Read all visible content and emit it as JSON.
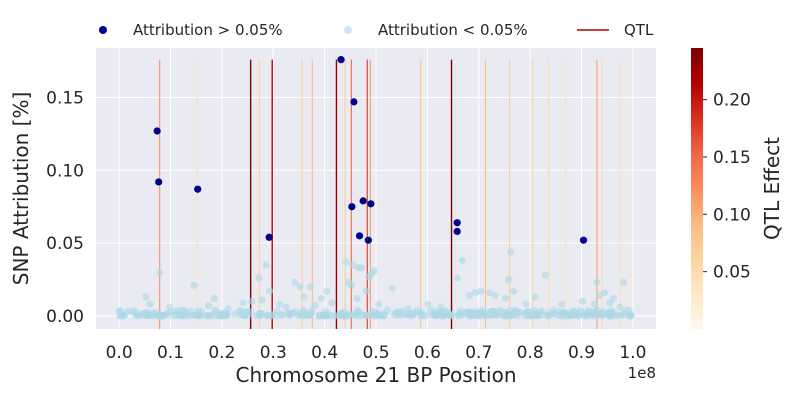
{
  "chart_data": {
    "type": "scatter",
    "xlabel": "Chromosome 21 BP Position",
    "ylabel": "SNP Attribution [%]",
    "x_offset_label": "1e8",
    "xlim": [
      -0.045,
      1.045
    ],
    "ylim": [
      -0.009,
      0.184
    ],
    "x_ticks": [
      0.0,
      0.1,
      0.2,
      0.3,
      0.4,
      0.5,
      0.6,
      0.7,
      0.8,
      0.9,
      1.0
    ],
    "x_tick_labels": [
      "0.0",
      "0.1",
      "0.2",
      "0.3",
      "0.4",
      "0.5",
      "0.6",
      "0.7",
      "0.8",
      "0.9",
      "1.0"
    ],
    "y_ticks": [
      0.0,
      0.05,
      0.1,
      0.15
    ],
    "y_tick_labels": [
      "0.00",
      "0.05",
      "0.10",
      "0.15"
    ],
    "grid": true,
    "legend": {
      "placement": "top",
      "entries": [
        {
          "label": "Attribution > 0.05%",
          "kind": "marker",
          "color": "#00008b"
        },
        {
          "label": "Attribution < 0.05%",
          "kind": "marker",
          "color": "#add8e6"
        },
        {
          "label": "QTL",
          "kind": "line",
          "color": "#b30000"
        }
      ]
    },
    "colorbar": {
      "label": "QTL Effect",
      "range": [
        0.0,
        0.245
      ],
      "ticks": [
        0.05,
        0.1,
        0.15,
        0.2
      ],
      "tick_labels": [
        "0.05",
        "0.10",
        "0.15",
        "0.20"
      ],
      "colormap": "OrRd",
      "colormap_stops": [
        "#fff7ec",
        "#fee8c8",
        "#fdd49e",
        "#fdbb84",
        "#fc8d59",
        "#ef6548",
        "#d7301f",
        "#b30000",
        "#7f0000"
      ]
    },
    "series": [
      {
        "name": "Attribution > 0.05%",
        "color": "#00008b",
        "points": [
          {
            "x": 0.074,
            "y": 0.127
          },
          {
            "x": 0.077,
            "y": 0.092
          },
          {
            "x": 0.153,
            "y": 0.087
          },
          {
            "x": 0.292,
            "y": 0.054
          },
          {
            "x": 0.432,
            "y": 0.176
          },
          {
            "x": 0.453,
            "y": 0.075
          },
          {
            "x": 0.457,
            "y": 0.147
          },
          {
            "x": 0.468,
            "y": 0.055
          },
          {
            "x": 0.475,
            "y": 0.079
          },
          {
            "x": 0.485,
            "y": 0.052
          },
          {
            "x": 0.49,
            "y": 0.077
          },
          {
            "x": 0.658,
            "y": 0.064
          },
          {
            "x": 0.658,
            "y": 0.058
          },
          {
            "x": 0.904,
            "y": 0.052
          }
        ]
      },
      {
        "name": "Attribution < 0.05%",
        "color": "#add8e6",
        "points": [
          {
            "x": 0.052,
            "y": 0.013
          },
          {
            "x": 0.06,
            "y": 0.008
          },
          {
            "x": 0.079,
            "y": 0.03
          },
          {
            "x": 0.098,
            "y": 0.006
          },
          {
            "x": 0.121,
            "y": 0.004
          },
          {
            "x": 0.146,
            "y": 0.021
          },
          {
            "x": 0.174,
            "y": 0.007
          },
          {
            "x": 0.185,
            "y": 0.012
          },
          {
            "x": 0.212,
            "y": 0.005
          },
          {
            "x": 0.241,
            "y": 0.009
          },
          {
            "x": 0.258,
            "y": 0.01
          },
          {
            "x": 0.272,
            "y": 0.026
          },
          {
            "x": 0.278,
            "y": 0.011
          },
          {
            "x": 0.286,
            "y": 0.035
          },
          {
            "x": 0.293,
            "y": 0.017
          },
          {
            "x": 0.312,
            "y": 0.008
          },
          {
            "x": 0.325,
            "y": 0.006
          },
          {
            "x": 0.342,
            "y": 0.023
          },
          {
            "x": 0.352,
            "y": 0.02
          },
          {
            "x": 0.36,
            "y": 0.013
          },
          {
            "x": 0.372,
            "y": 0.02
          },
          {
            "x": 0.381,
            "y": 0.007
          },
          {
            "x": 0.394,
            "y": 0.012
          },
          {
            "x": 0.404,
            "y": 0.017
          },
          {
            "x": 0.414,
            "y": 0.009
          },
          {
            "x": 0.442,
            "y": 0.037
          },
          {
            "x": 0.447,
            "y": 0.023
          },
          {
            "x": 0.452,
            "y": 0.021
          },
          {
            "x": 0.455,
            "y": 0.035
          },
          {
            "x": 0.463,
            "y": 0.012
          },
          {
            "x": 0.466,
            "y": 0.033
          },
          {
            "x": 0.472,
            "y": 0.033
          },
          {
            "x": 0.481,
            "y": 0.017
          },
          {
            "x": 0.486,
            "y": 0.027
          },
          {
            "x": 0.492,
            "y": 0.029
          },
          {
            "x": 0.497,
            "y": 0.031
          },
          {
            "x": 0.505,
            "y": 0.008
          },
          {
            "x": 0.522,
            "y": 0.004
          },
          {
            "x": 0.532,
            "y": 0.019
          },
          {
            "x": 0.562,
            "y": 0.005
          },
          {
            "x": 0.601,
            "y": 0.008
          },
          {
            "x": 0.626,
            "y": 0.006
          },
          {
            "x": 0.658,
            "y": 0.026
          },
          {
            "x": 0.668,
            "y": 0.038
          },
          {
            "x": 0.682,
            "y": 0.014
          },
          {
            "x": 0.693,
            "y": 0.016
          },
          {
            "x": 0.704,
            "y": 0.017
          },
          {
            "x": 0.721,
            "y": 0.016
          },
          {
            "x": 0.732,
            "y": 0.014
          },
          {
            "x": 0.752,
            "y": 0.012
          },
          {
            "x": 0.758,
            "y": 0.025
          },
          {
            "x": 0.762,
            "y": 0.044
          },
          {
            "x": 0.768,
            "y": 0.017
          },
          {
            "x": 0.792,
            "y": 0.008
          },
          {
            "x": 0.81,
            "y": 0.013
          },
          {
            "x": 0.83,
            "y": 0.028
          },
          {
            "x": 0.862,
            "y": 0.008
          },
          {
            "x": 0.902,
            "y": 0.01
          },
          {
            "x": 0.925,
            "y": 0.008
          },
          {
            "x": 0.93,
            "y": 0.023
          },
          {
            "x": 0.935,
            "y": 0.014
          },
          {
            "x": 0.945,
            "y": 0.016
          },
          {
            "x": 0.955,
            "y": 0.009
          },
          {
            "x": 0.962,
            "y": 0.012
          },
          {
            "x": 0.975,
            "y": 0.006
          },
          {
            "x": 0.982,
            "y": 0.023
          }
        ]
      }
    ],
    "qtl_lines": [
      {
        "x": 0.079,
        "effect": 0.12
      },
      {
        "x": 0.152,
        "effect": 0.04
      },
      {
        "x": 0.256,
        "effect": 0.24
      },
      {
        "x": 0.273,
        "effect": 0.06
      },
      {
        "x": 0.298,
        "effect": 0.21
      },
      {
        "x": 0.356,
        "effect": 0.07
      },
      {
        "x": 0.376,
        "effect": 0.09
      },
      {
        "x": 0.423,
        "effect": 0.23
      },
      {
        "x": 0.44,
        "effect": 0.07
      },
      {
        "x": 0.452,
        "effect": 0.15
      },
      {
        "x": 0.483,
        "effect": 0.18
      },
      {
        "x": 0.489,
        "effect": 0.11
      },
      {
        "x": 0.587,
        "effect": 0.08
      },
      {
        "x": 0.647,
        "effect": 0.245
      },
      {
        "x": 0.713,
        "effect": 0.09
      },
      {
        "x": 0.76,
        "effect": 0.07
      },
      {
        "x": 0.805,
        "effect": 0.06
      },
      {
        "x": 0.836,
        "effect": 0.05
      },
      {
        "x": 0.869,
        "effect": 0.04
      },
      {
        "x": 0.93,
        "effect": 0.11
      },
      {
        "x": 0.94,
        "effect": 0.05
      },
      {
        "x": 0.976,
        "effect": 0.04
      },
      {
        "x": 0.992,
        "effect": 0.03
      }
    ]
  }
}
